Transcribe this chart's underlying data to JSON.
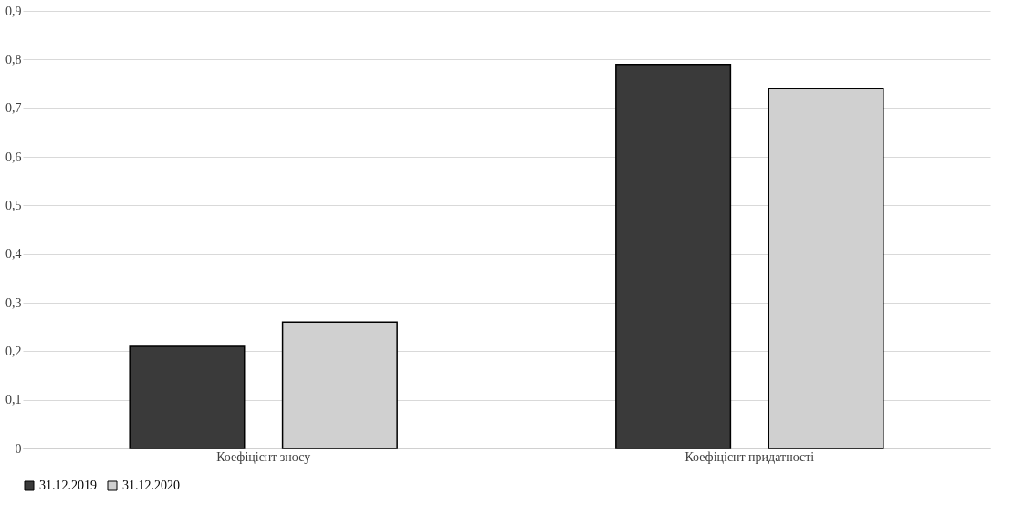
{
  "chart_data": {
    "type": "bar",
    "categories": [
      "Коефіцієнт зносу",
      "Коефіцієнт придатності"
    ],
    "series": [
      {
        "name": "31.12.2019",
        "color": "#3a3a3a",
        "values": [
          0.21,
          0.79
        ]
      },
      {
        "name": "31.12.2020",
        "color": "#d0d0d0",
        "values": [
          0.26,
          0.74
        ]
      }
    ],
    "ylim": [
      0,
      0.9
    ],
    "yticks": [
      0,
      {
        "value": 0.1,
        "label": "0,1"
      },
      {
        "value": 0.2,
        "label": "0,2"
      },
      {
        "value": 0.3,
        "label": "0,3"
      },
      {
        "value": 0.4,
        "label": "0,4"
      },
      {
        "value": 0.5,
        "label": "0,5"
      },
      {
        "value": 0.6,
        "label": "0,6"
      },
      {
        "value": 0.7,
        "label": "0,7"
      },
      {
        "value": 0.8,
        "label": "0,8"
      },
      {
        "value": 0.9,
        "label": "0,9"
      }
    ],
    "grid": "y",
    "legend": "bottom"
  }
}
